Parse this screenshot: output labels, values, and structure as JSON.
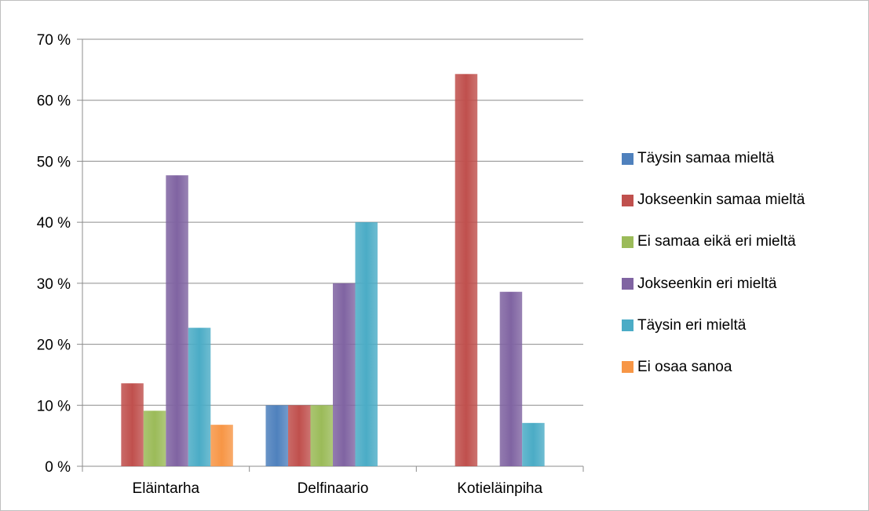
{
  "chart_data": {
    "type": "bar",
    "categories": [
      "Eläintarha",
      "Delfinaario",
      "Kotieläinpiha"
    ],
    "series": [
      {
        "name": "Täysin samaa mieltä",
        "color": "#4F81BD",
        "values": [
          0,
          10,
          0
        ]
      },
      {
        "name": "Jokseenkin samaa mieltä",
        "color": "#C0504D",
        "values": [
          13.6,
          10,
          64.3
        ]
      },
      {
        "name": "Ei samaa eikä eri mieltä",
        "color": "#9BBB59",
        "values": [
          9.1,
          10,
          0
        ]
      },
      {
        "name": "Jokseenkin eri mieltä",
        "color": "#8064A2",
        "values": [
          47.7,
          30,
          28.6
        ]
      },
      {
        "name": "Täysin eri mieltä",
        "color": "#4BACC6",
        "values": [
          22.7,
          40,
          7.1
        ]
      },
      {
        "name": "Ei osaa sanoa",
        "color": "#F79646",
        "values": [
          6.8,
          0,
          0
        ]
      }
    ],
    "yticks": [
      "0 %",
      "10 %",
      "20 %",
      "30 %",
      "40 %",
      "50 %",
      "60 %",
      "70 %"
    ],
    "ylim": [
      0,
      70
    ],
    "grid": true,
    "legend_position": "right"
  }
}
